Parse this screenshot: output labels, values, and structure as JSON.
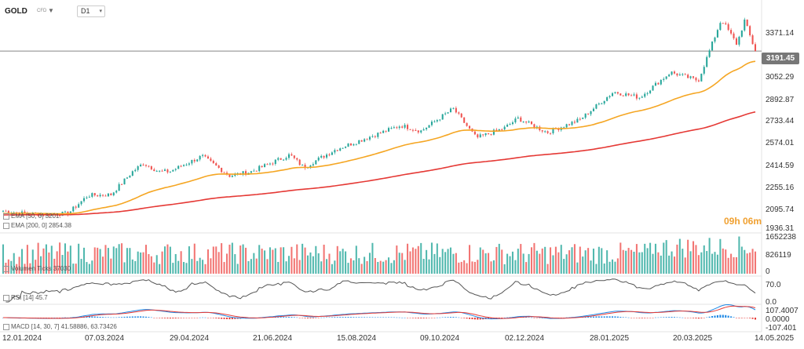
{
  "header": {
    "symbol": "GOLD",
    "instrument_type": "CFD",
    "timeframe": "D1"
  },
  "last_price_label": "3191.45",
  "countdown": "09h 06m",
  "price_axis_labels": [
    "3371.14",
    "3052.29",
    "2892.87",
    "2733.44",
    "2574.01",
    "2414.59",
    "2255.16",
    "2095.74",
    "1936.31"
  ],
  "x_axis_labels": [
    "12.01.2024",
    "07.03.2024",
    "29.04.2024",
    "21.06.2024",
    "15.08.2024",
    "09.10.2024",
    "02.12.2024",
    "28.01.2025",
    "20.03.2025",
    "14.05.2025"
  ],
  "legends": {
    "ema50": "EMA [50, 0] 3201.",
    "ema200": "EMA [200, 0] 2854.38",
    "volume": "Volumen Ticks 37030",
    "rsi": "RSI [14] 45.7",
    "macd": "MACD [14, 30, 7] 41.58886, 63.73426"
  },
  "volume_axis_labels": [
    "1652238",
    "826119",
    "0"
  ],
  "rsi_axis_labels": [
    "70.0",
    "0.0"
  ],
  "macd_axis_labels": [
    "107.4007",
    "0.0000",
    "-107.401"
  ],
  "colors": {
    "up": "#26a69a",
    "down": "#ef5350",
    "ema50": "#f5a623",
    "ema200": "#e53935",
    "macd": "#1e88e5",
    "signal": "#e53935",
    "rsi": "#555555",
    "countdown": "#f0a030"
  },
  "chart_data": {
    "type": "candlestick",
    "x_range": [
      "12.01.2024",
      "14.05.2025"
    ],
    "ylim": [
      1936.31,
      3450
    ],
    "close_anchors": [
      [
        "12.01.2024",
        2050
      ],
      [
        "26.01.2024",
        2030
      ],
      [
        "08.02.2024",
        2025
      ],
      [
        "23.02.2024",
        2030
      ],
      [
        "07.03.2024",
        2160
      ],
      [
        "22.03.2024",
        2165
      ],
      [
        "05.04.2024",
        2330
      ],
      [
        "12.04.2024",
        2390
      ],
      [
        "22.04.2024",
        2330
      ],
      [
        "29.04.2024",
        2330
      ],
      [
        "20.05.2024",
        2440
      ],
      [
        "07.06.2024",
        2300
      ],
      [
        "21.06.2024",
        2330
      ],
      [
        "16.07.2024",
        2450
      ],
      [
        "25.07.2024",
        2360
      ],
      [
        "15.08.2024",
        2490
      ],
      [
        "26.09.2024",
        2660
      ],
      [
        "09.10.2024",
        2620
      ],
      [
        "30.10.2024",
        2780
      ],
      [
        "14.11.2024",
        2570
      ],
      [
        "02.12.2024",
        2640
      ],
      [
        "11.12.2024",
        2710
      ],
      [
        "30.12.2024",
        2610
      ],
      [
        "20.01.2025",
        2700
      ],
      [
        "11.02.2025",
        2900
      ],
      [
        "28.02.2025",
        2860
      ],
      [
        "20.03.2025",
        3040
      ],
      [
        "07.04.2025",
        2980
      ],
      [
        "22.04.2025",
        3420
      ],
      [
        "02.05.2025",
        3240
      ],
      [
        "07.05.2025",
        3410
      ],
      [
        "14.05.2025",
        3191.45
      ]
    ],
    "ema50_final": 3201,
    "ema200_final": 2854.38,
    "indicators": {
      "volume": {
        "ylim": [
          0,
          1652238
        ],
        "last": 37030
      },
      "rsi": {
        "period": 14,
        "last": 45.7,
        "levels": [
          70,
          0
        ]
      },
      "macd": {
        "params": [
          14,
          30,
          7
        ],
        "macd": 41.58886,
        "signal": 63.73426,
        "ylim": [
          -107.401,
          107.4007
        ]
      }
    }
  }
}
